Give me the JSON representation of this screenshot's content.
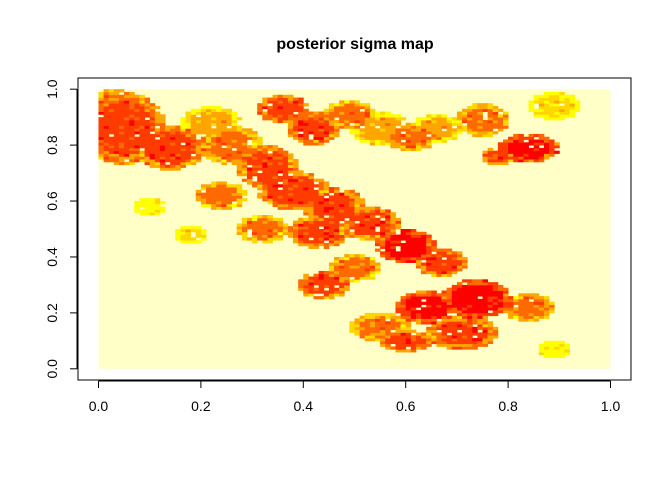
{
  "chart_data": {
    "type": "heatmap",
    "title": "posterior sigma map",
    "xlabel": "",
    "ylabel": "",
    "xlim": [
      0,
      1
    ],
    "ylim": [
      0,
      1
    ],
    "x_ticks": [
      "0.0",
      "0.2",
      "0.4",
      "0.6",
      "0.8",
      "1.0"
    ],
    "y_ticks": [
      "0.0",
      "0.2",
      "0.4",
      "0.6",
      "0.8",
      "1.0"
    ],
    "grid": false,
    "legend": "none",
    "background_color": "#FFFFC8",
    "palette": [
      "#FFFFC8",
      "#FFFF00",
      "#FFD700",
      "#FFA500",
      "#FF6A00",
      "#FF3C00",
      "#FF0000"
    ],
    "grid_resolution": [
      100,
      100
    ],
    "regions": [
      {
        "x": 0.05,
        "y": 0.86,
        "rx": 0.08,
        "ry": 0.13,
        "level": 5
      },
      {
        "x": 0.03,
        "y": 0.93,
        "rx": 0.05,
        "ry": 0.07,
        "level": 4
      },
      {
        "x": 0.14,
        "y": 0.79,
        "rx": 0.07,
        "ry": 0.08,
        "level": 5
      },
      {
        "x": 0.22,
        "y": 0.88,
        "rx": 0.06,
        "ry": 0.06,
        "level": 3
      },
      {
        "x": 0.26,
        "y": 0.8,
        "rx": 0.06,
        "ry": 0.07,
        "level": 4
      },
      {
        "x": 0.36,
        "y": 0.93,
        "rx": 0.05,
        "ry": 0.05,
        "level": 5
      },
      {
        "x": 0.42,
        "y": 0.86,
        "rx": 0.05,
        "ry": 0.06,
        "level": 5
      },
      {
        "x": 0.49,
        "y": 0.91,
        "rx": 0.05,
        "ry": 0.05,
        "level": 4
      },
      {
        "x": 0.55,
        "y": 0.86,
        "rx": 0.06,
        "ry": 0.06,
        "level": 3
      },
      {
        "x": 0.61,
        "y": 0.83,
        "rx": 0.05,
        "ry": 0.05,
        "level": 4
      },
      {
        "x": 0.66,
        "y": 0.86,
        "rx": 0.05,
        "ry": 0.05,
        "level": 3
      },
      {
        "x": 0.75,
        "y": 0.89,
        "rx": 0.05,
        "ry": 0.06,
        "level": 4
      },
      {
        "x": 0.89,
        "y": 0.94,
        "rx": 0.05,
        "ry": 0.05,
        "level": 2
      },
      {
        "x": 0.84,
        "y": 0.79,
        "rx": 0.06,
        "ry": 0.05,
        "level": 6
      },
      {
        "x": 0.78,
        "y": 0.76,
        "rx": 0.03,
        "ry": 0.03,
        "level": 5
      },
      {
        "x": 0.33,
        "y": 0.72,
        "rx": 0.06,
        "ry": 0.08,
        "level": 5
      },
      {
        "x": 0.38,
        "y": 0.64,
        "rx": 0.07,
        "ry": 0.07,
        "level": 5
      },
      {
        "x": 0.24,
        "y": 0.62,
        "rx": 0.05,
        "ry": 0.05,
        "level": 4
      },
      {
        "x": 0.46,
        "y": 0.58,
        "rx": 0.06,
        "ry": 0.07,
        "level": 5
      },
      {
        "x": 0.43,
        "y": 0.49,
        "rx": 0.06,
        "ry": 0.06,
        "level": 5
      },
      {
        "x": 0.53,
        "y": 0.52,
        "rx": 0.06,
        "ry": 0.06,
        "level": 5
      },
      {
        "x": 0.32,
        "y": 0.5,
        "rx": 0.05,
        "ry": 0.05,
        "level": 4
      },
      {
        "x": 0.6,
        "y": 0.44,
        "rx": 0.06,
        "ry": 0.06,
        "level": 6
      },
      {
        "x": 0.67,
        "y": 0.38,
        "rx": 0.05,
        "ry": 0.05,
        "level": 5
      },
      {
        "x": 0.5,
        "y": 0.36,
        "rx": 0.05,
        "ry": 0.05,
        "level": 4
      },
      {
        "x": 0.44,
        "y": 0.3,
        "rx": 0.05,
        "ry": 0.05,
        "level": 5
      },
      {
        "x": 0.74,
        "y": 0.25,
        "rx": 0.07,
        "ry": 0.07,
        "level": 6
      },
      {
        "x": 0.64,
        "y": 0.22,
        "rx": 0.06,
        "ry": 0.06,
        "level": 6
      },
      {
        "x": 0.84,
        "y": 0.22,
        "rx": 0.05,
        "ry": 0.05,
        "level": 4
      },
      {
        "x": 0.71,
        "y": 0.13,
        "rx": 0.07,
        "ry": 0.06,
        "level": 5
      },
      {
        "x": 0.55,
        "y": 0.15,
        "rx": 0.06,
        "ry": 0.05,
        "level": 4
      },
      {
        "x": 0.6,
        "y": 0.1,
        "rx": 0.05,
        "ry": 0.04,
        "level": 5
      },
      {
        "x": 0.89,
        "y": 0.07,
        "rx": 0.035,
        "ry": 0.03,
        "level": 1
      },
      {
        "x": 0.1,
        "y": 0.58,
        "rx": 0.03,
        "ry": 0.03,
        "level": 1
      },
      {
        "x": 0.18,
        "y": 0.48,
        "rx": 0.03,
        "ry": 0.03,
        "level": 2
      }
    ]
  }
}
